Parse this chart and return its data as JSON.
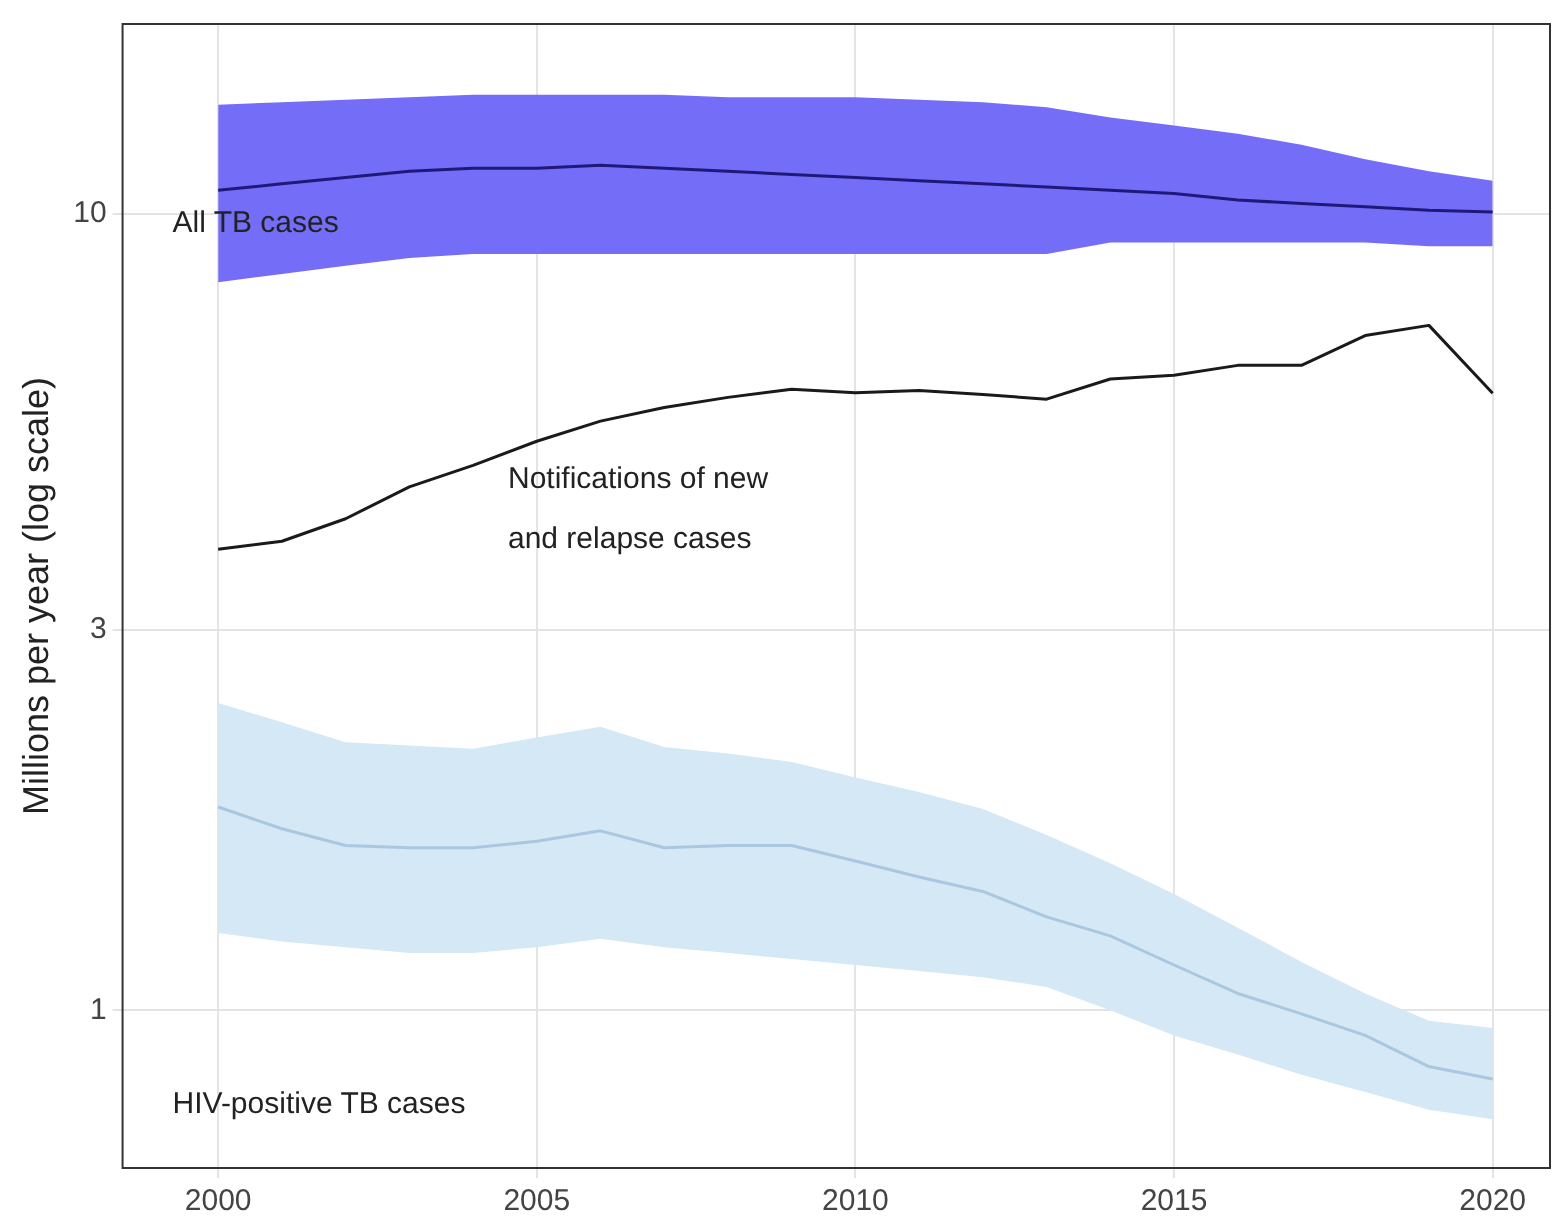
{
  "chart_data": {
    "type": "line",
    "ylabel": "Millions per year (log scale)",
    "log": "y",
    "grid": true,
    "legend": false,
    "marker": "none",
    "line_style": "solid",
    "x": [
      2000,
      2001,
      2002,
      2003,
      2004,
      2005,
      2006,
      2007,
      2008,
      2009,
      2010,
      2011,
      2012,
      2013,
      2014,
      2015,
      2016,
      2017,
      2018,
      2019,
      2020
    ],
    "xlim": [
      1998.5,
      2020.9
    ],
    "xticks": [
      2000,
      2005,
      2010,
      2015,
      2020
    ],
    "ylim": [
      0.634,
      17.3
    ],
    "yticks": [
      1,
      3,
      10
    ],
    "series": [
      {
        "color": "#1f1a7a",
        "values": [
          10.7,
          10.9,
          11.1,
          11.3,
          11.4,
          11.4,
          11.5,
          11.4,
          11.3,
          11.2,
          11.1,
          11.0,
          10.9,
          10.8,
          10.7,
          10.6,
          10.4,
          10.3,
          10.2,
          10.1,
          10.05
        ],
        "upper": [
          13.7,
          13.8,
          13.9,
          14.0,
          14.1,
          14.1,
          14.1,
          14.1,
          14.0,
          14.0,
          14.0,
          13.9,
          13.8,
          13.6,
          13.2,
          12.9,
          12.6,
          12.2,
          11.7,
          11.3,
          11.0
        ],
        "lower": [
          8.2,
          8.4,
          8.6,
          8.8,
          8.9,
          8.9,
          8.9,
          8.9,
          8.9,
          8.9,
          8.9,
          8.9,
          8.9,
          8.9,
          9.2,
          9.2,
          9.2,
          9.2,
          9.2,
          9.1,
          9.1
        ]
      },
      {
        "color": "#1a1a1a",
        "values": [
          3.79,
          3.88,
          4.14,
          4.54,
          4.83,
          5.18,
          5.49,
          5.71,
          5.88,
          6.02,
          5.96,
          6.0,
          5.93,
          5.85,
          6.2,
          6.27,
          6.45,
          6.45,
          7.03,
          7.24,
          5.95
        ]
      },
      {
        "color": "#a9c8e0",
        "values": [
          1.8,
          1.69,
          1.61,
          1.6,
          1.6,
          1.63,
          1.68,
          1.6,
          1.61,
          1.61,
          1.54,
          1.47,
          1.41,
          1.31,
          1.24,
          1.14,
          1.05,
          0.99,
          0.93,
          0.85,
          0.82
        ],
        "upper": [
          2.43,
          2.3,
          2.17,
          2.15,
          2.13,
          2.2,
          2.27,
          2.14,
          2.1,
          2.05,
          1.96,
          1.88,
          1.79,
          1.66,
          1.53,
          1.4,
          1.27,
          1.15,
          1.05,
          0.97,
          0.95
        ],
        "lower": [
          1.25,
          1.22,
          1.2,
          1.18,
          1.18,
          1.2,
          1.23,
          1.2,
          1.18,
          1.16,
          1.14,
          1.12,
          1.1,
          1.07,
          1.0,
          0.93,
          0.88,
          0.83,
          0.79,
          0.75,
          0.73
        ]
      }
    ],
    "annotations": [
      "All TB cases",
      "Notifications of new\nand relapse cases",
      "HIV-positive TB cases"
    ]
  }
}
